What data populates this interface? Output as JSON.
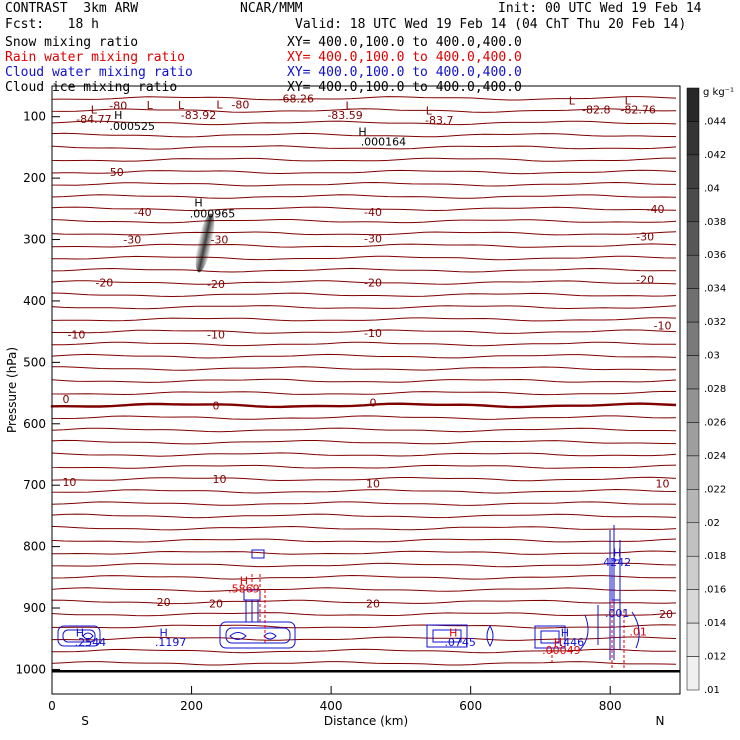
{
  "header": {
    "model": "CONTRAST  3km ARW",
    "org": "NCAR/MMM",
    "init": "Init: 00 UTC Wed 19 Feb 14",
    "fcst": "Fcst:   18 h",
    "valid": "Valid: 18 UTC Wed 19 Feb 14 (04 ChT Thu 20 Feb 14)"
  },
  "legend": [
    {
      "label": "Snow mixing ratio",
      "xy": "XY= 400.0,100.0 to 400.0,400.0",
      "color": "#000000"
    },
    {
      "label": "Rain water mixing ratio",
      "xy": "XY= 400.0,100.0 to 400.0,400.0",
      "color": "#e00000"
    },
    {
      "label": "Cloud water mixing ratio",
      "xy": "XY= 400.0,100.0 to 400.0,400.0",
      "color": "#1010d0"
    },
    {
      "label": "Cloud ice mixing ratio",
      "xy": "XY= 400.0,100.0 to 400.0,400.0",
      "color": "#000000"
    }
  ],
  "chart_data": {
    "type": "contour",
    "xlabel": "Distance (km)",
    "ylabel": "Pressure (hPa)",
    "xlim": [
      0,
      900
    ],
    "ylim": [
      1040,
      50
    ],
    "x_ticks": [
      "0",
      "200",
      "400",
      "600",
      "800"
    ],
    "y_ticks": [
      "100",
      "200",
      "300",
      "400",
      "500",
      "600",
      "700",
      "800",
      "900",
      "1000"
    ],
    "end_labels": {
      "left": "S",
      "right": "N"
    },
    "colorbar": {
      "unit": "g kg⁻¹",
      "ticks": [
        ".044",
        ".042",
        ".04",
        ".038",
        ".036",
        ".034",
        ".032",
        ".03",
        ".028",
        ".026",
        ".024",
        ".022",
        ".02",
        ".018",
        ".016",
        ".014",
        ".012",
        ".01"
      ]
    },
    "temperature_labels": [
      {
        "x": 130,
        "p": 255,
        "text": "-40"
      },
      {
        "x": 460,
        "p": 255,
        "text": "-40"
      },
      {
        "x": 865,
        "p": 250,
        "text": "-40"
      },
      {
        "x": 90,
        "p": 190,
        "text": "-50"
      },
      {
        "x": 115,
        "p": 300,
        "text": "-30"
      },
      {
        "x": 240,
        "p": 300,
        "text": "-30"
      },
      {
        "x": 460,
        "p": 298,
        "text": "-30"
      },
      {
        "x": 850,
        "p": 295,
        "text": "-30"
      },
      {
        "x": 75,
        "p": 370,
        "text": "-20"
      },
      {
        "x": 235,
        "p": 372,
        "text": "-20"
      },
      {
        "x": 460,
        "p": 370,
        "text": "-20"
      },
      {
        "x": 850,
        "p": 365,
        "text": "-20"
      },
      {
        "x": 35,
        "p": 455,
        "text": "-10"
      },
      {
        "x": 235,
        "p": 455,
        "text": "-10"
      },
      {
        "x": 460,
        "p": 452,
        "text": "-10"
      },
      {
        "x": 875,
        "p": 440,
        "text": "-10"
      },
      {
        "x": 20,
        "p": 560,
        "text": "0"
      },
      {
        "x": 235,
        "p": 570,
        "text": "0"
      },
      {
        "x": 460,
        "p": 565,
        "text": "0"
      },
      {
        "x": 25,
        "p": 695,
        "text": "10"
      },
      {
        "x": 240,
        "p": 690,
        "text": "10"
      },
      {
        "x": 460,
        "p": 697,
        "text": "10"
      },
      {
        "x": 875,
        "p": 697,
        "text": "10"
      },
      {
        "x": 160,
        "p": 890,
        "text": "20"
      },
      {
        "x": 235,
        "p": 893,
        "text": "20"
      },
      {
        "x": 460,
        "p": 893,
        "text": "20"
      },
      {
        "x": 880,
        "p": 910,
        "text": "20"
      }
    ],
    "extrema_labels": [
      {
        "x": 60,
        "p": 88,
        "text": "L",
        "color": "#800000"
      },
      {
        "x": 60,
        "p": 104,
        "text": "-84.77",
        "color": "#800000"
      },
      {
        "x": 95,
        "p": 97,
        "text": "H",
        "color": "#000000"
      },
      {
        "x": 115,
        "p": 115,
        "text": ".000525",
        "color": "#000000"
      },
      {
        "x": 140,
        "p": 81,
        "text": "L",
        "color": "#800000"
      },
      {
        "x": 95,
        "p": 82,
        "text": "-80",
        "color": "#800000"
      },
      {
        "x": 185,
        "p": 81,
        "text": "L",
        "color": "#800000"
      },
      {
        "x": 210,
        "p": 97,
        "text": "-83.92",
        "color": "#800000"
      },
      {
        "x": 240,
        "p": 80,
        "text": "L",
        "color": "#800000"
      },
      {
        "x": 270,
        "p": 80,
        "text": "-80",
        "color": "#800000"
      },
      {
        "x": 350,
        "p": 70,
        "text": "-68.26",
        "color": "#800000"
      },
      {
        "x": 425,
        "p": 82,
        "text": "L",
        "color": "#800000"
      },
      {
        "x": 420,
        "p": 97,
        "text": "-83.59",
        "color": "#800000"
      },
      {
        "x": 445,
        "p": 124,
        "text": "H",
        "color": "#000000"
      },
      {
        "x": 475,
        "p": 140,
        "text": ".000164",
        "color": "#000000"
      },
      {
        "x": 540,
        "p": 90,
        "text": "L",
        "color": "#800000"
      },
      {
        "x": 555,
        "p": 105,
        "text": "-83.7",
        "color": "#800000"
      },
      {
        "x": 745,
        "p": 74,
        "text": "L",
        "color": "#800000"
      },
      {
        "x": 780,
        "p": 88,
        "text": "-82.8",
        "color": "#800000"
      },
      {
        "x": 825,
        "p": 74,
        "text": "L",
        "color": "#800000"
      },
      {
        "x": 840,
        "p": 88,
        "text": "-82.76",
        "color": "#800000"
      },
      {
        "x": 210,
        "p": 240,
        "text": "H",
        "color": "#000000"
      },
      {
        "x": 230,
        "p": 258,
        "text": ".000965",
        "color": "#000000"
      },
      {
        "x": 40,
        "p": 940,
        "text": "H",
        "color": "#1010d0"
      },
      {
        "x": 55,
        "p": 955,
        "text": ".2544",
        "color": "#1010d0"
      },
      {
        "x": 160,
        "p": 940,
        "text": "H",
        "color": "#1010d0"
      },
      {
        "x": 170,
        "p": 955,
        "text": ".1197",
        "color": "#1010d0"
      },
      {
        "x": 275,
        "p": 855,
        "text": "H",
        "color": "#e00000"
      },
      {
        "x": 275,
        "p": 868,
        "text": ".5869",
        "color": "#e00000"
      },
      {
        "x": 575,
        "p": 940,
        "text": "H",
        "color": "#e00000"
      },
      {
        "x": 585,
        "p": 955,
        "text": ".0745",
        "color": "#1010d0"
      },
      {
        "x": 735,
        "p": 940,
        "text": "H",
        "color": "#1010d0"
      },
      {
        "x": 745,
        "p": 955,
        "text": ".446",
        "color": "#1010d0"
      },
      {
        "x": 725,
        "p": 955,
        "text": "H",
        "color": "#e00000"
      },
      {
        "x": 730,
        "p": 968,
        "text": ".00049",
        "color": "#e00000"
      },
      {
        "x": 810,
        "p": 810,
        "text": "H",
        "color": "#1010d0"
      },
      {
        "x": 810,
        "p": 825,
        "text": "4242",
        "color": "#1010d0"
      },
      {
        "x": 810,
        "p": 908,
        "text": ".001",
        "color": "#1010d0"
      },
      {
        "x": 840,
        "p": 938,
        "text": ".01",
        "color": "#e00000"
      }
    ]
  }
}
